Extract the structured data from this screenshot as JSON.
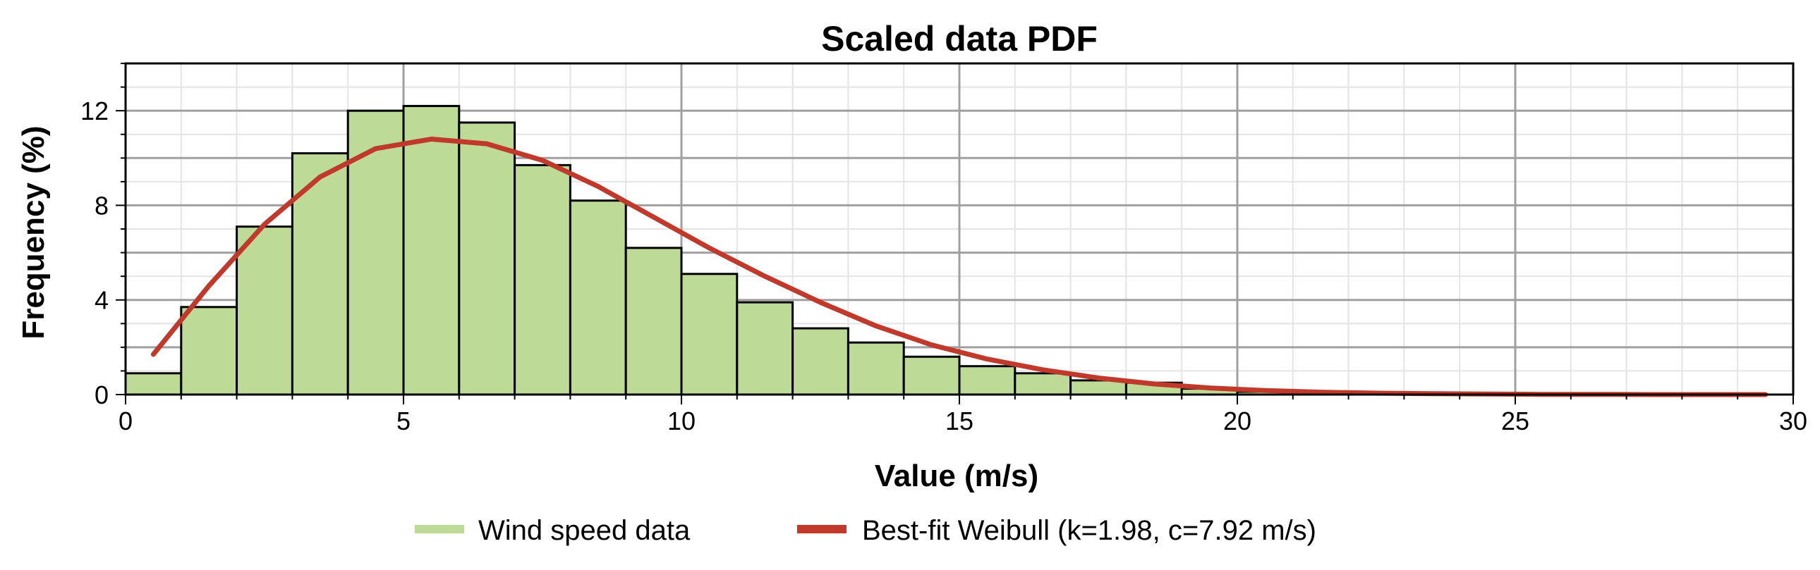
{
  "chart_data": {
    "type": "bar",
    "title": "Scaled data PDF",
    "xlabel": "Value (m/s)",
    "ylabel": "Frequency (%)",
    "xlim": [
      0,
      30
    ],
    "ylim": [
      0,
      14
    ],
    "xticks": [
      "0",
      "5",
      "10",
      "15",
      "20",
      "25",
      "30"
    ],
    "yticks": [
      "0",
      "4",
      "8",
      "12"
    ],
    "grid": true,
    "legend_position": "bottom",
    "colors": {
      "bar_fill": "#bddb97",
      "bar_edge": "#000000",
      "fit_line": "#c0392b",
      "major_grid": "#a0a0a0",
      "minor_grid": "#e4e4e4"
    },
    "series": [
      {
        "name": "Wind speed data",
        "type": "histogram",
        "bin_width": 1,
        "bin_starts": [
          0,
          1,
          2,
          3,
          4,
          5,
          6,
          7,
          8,
          9,
          10,
          11,
          12,
          13,
          14,
          15,
          16,
          17,
          18,
          19,
          20,
          21,
          22,
          23,
          24,
          25,
          26,
          27,
          28,
          29
        ],
        "values": [
          0.9,
          3.7,
          7.1,
          10.2,
          12.0,
          12.2,
          11.5,
          9.7,
          8.2,
          6.2,
          5.1,
          3.9,
          2.8,
          2.2,
          1.6,
          1.2,
          0.9,
          0.6,
          0.5,
          0.25,
          0.12,
          0.06,
          0.03,
          0.02,
          0.01,
          0.01,
          0.0,
          0.0,
          0.0,
          0.0
        ]
      },
      {
        "name": "Best-fit Weibull (k=1.98, c=7.92 m/s)",
        "type": "line",
        "x": [
          0.5,
          1.5,
          2.5,
          3.5,
          4.5,
          5.5,
          6.5,
          7.5,
          8.5,
          9.5,
          10.5,
          11.5,
          12.5,
          13.5,
          14.5,
          15.5,
          16.5,
          17.5,
          18.5,
          19.5,
          20.5,
          21.5,
          22.5,
          23.5,
          24.5,
          25.5,
          26.5,
          27.5,
          28.5,
          29.5
        ],
        "values": [
          1.7,
          4.6,
          7.2,
          9.2,
          10.4,
          10.8,
          10.6,
          9.9,
          8.8,
          7.5,
          6.2,
          5.0,
          3.9,
          2.9,
          2.1,
          1.5,
          1.05,
          0.7,
          0.45,
          0.28,
          0.17,
          0.1,
          0.06,
          0.04,
          0.02,
          0.01,
          0.01,
          0.0,
          0.0,
          0.0
        ]
      }
    ]
  }
}
